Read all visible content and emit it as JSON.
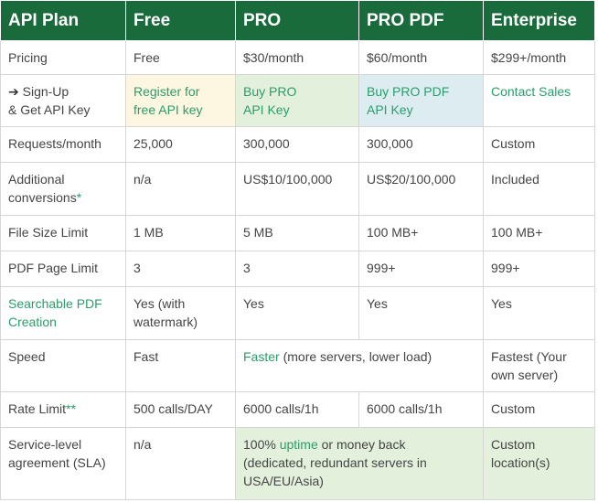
{
  "headers": [
    "API Plan",
    "Free",
    "PRO",
    "PRO PDF",
    "Enterprise"
  ],
  "rows": {
    "pricing": {
      "label": "Pricing",
      "free": "Pricing",
      "v": [
        "Free",
        "$30/month",
        "$60/month",
        "$299+/month"
      ]
    },
    "signup": {
      "arrow": "➔",
      "label1": "Sign-Up",
      "label2": "& Get API Key",
      "free1": "Register for",
      "free2": "free API key",
      "pro1": "Buy PRO",
      "pro2": "API Key",
      "pdf1": "Buy PRO PDF",
      "pdf2": "API Key",
      "ent": "Contact Sales"
    },
    "requests": {
      "label": "Requests/month",
      "v": [
        "25,000",
        "300,000",
        "300,000",
        "Custom"
      ]
    },
    "conversions": {
      "label1": "Additional",
      "label2": "conversions",
      "star": "*",
      "v": [
        "n/a",
        "US$10/100,000",
        "US$20/100,000",
        "Included"
      ]
    },
    "filesize": {
      "label": "File Size Limit",
      "v": [
        "1 MB",
        "5 MB",
        "100 MB+",
        "100 MB+"
      ]
    },
    "pdfpage": {
      "label": "PDF Page Limit",
      "v": [
        "3",
        "3",
        "999+",
        "999+"
      ]
    },
    "searchable": {
      "label1": "Searchable PDF",
      "label2": "Creation",
      "free1": "Yes (with",
      "free2": "watermark)",
      "v": [
        "Yes",
        "Yes",
        "Yes"
      ]
    },
    "speed": {
      "label": "Speed",
      "free": "Fast",
      "faster": "Faster",
      "faster_rest": " (more servers, lower load)",
      "ent1": "Fastest (Your",
      "ent2": "own server)"
    },
    "rate": {
      "label": "Rate Limit",
      "star": "**",
      "v": [
        "500 calls/DAY",
        "6000 calls/1h",
        "6000 calls/1h",
        "Custom"
      ]
    },
    "sla": {
      "label1": "Service-level",
      "label2": "agreement (SLA)",
      "free": "n/a",
      "pro_a": "100% ",
      "pro_uptime": "uptime",
      "pro_b": " or money back",
      "pro_2": "(dedicated, redundant servers in",
      "pro_3": "USA/EU/Asia)",
      "ent1": "Custom",
      "ent2": "location(s)"
    }
  }
}
